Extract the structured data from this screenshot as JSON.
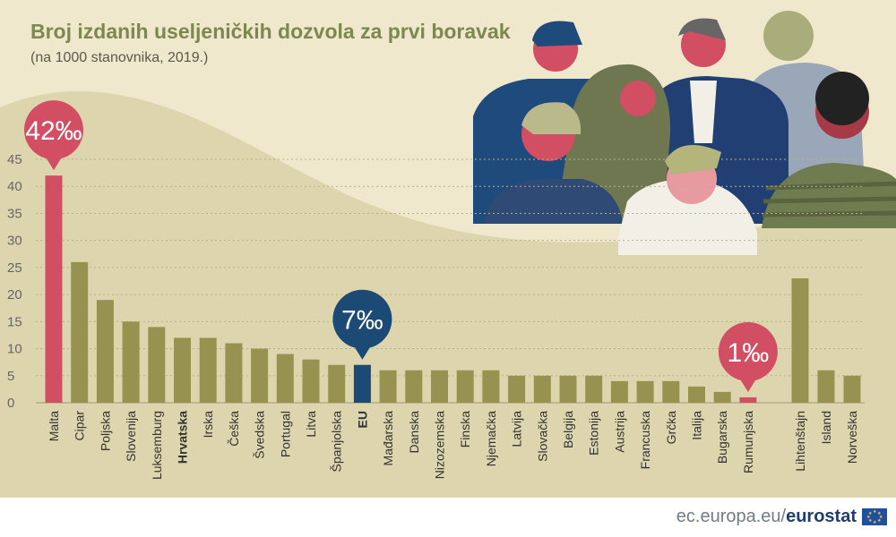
{
  "title": "Broj izdanih useljeničkih dozvola za prvi boravak",
  "subtitle": "(na 1000 stanovnika, 2019.)",
  "footer": {
    "site": "ec.europa.eu/",
    "brand": "eurostat"
  },
  "colors": {
    "olive": "#97924f",
    "malta": "#d24e63",
    "eu": "#1b4a75",
    "title": "#7a8a4e",
    "background": "#efe8cc",
    "wave": "#ddd5ad"
  },
  "chart_data": {
    "type": "bar",
    "categories": [
      "Malta",
      "Cipar",
      "Poljska",
      "Slovenija",
      "Luksemburg",
      "Hrvatska",
      "Irska",
      "Češka",
      "Švedska",
      "Portugal",
      "Litva",
      "Španjolska",
      "EU",
      "Mađarska",
      "Danska",
      "Nizozemska",
      "Finska",
      "Njemačka",
      "Latvija",
      "Slovačka",
      "Belgija",
      "Estonija",
      "Austrija",
      "Francuska",
      "Grčka",
      "Italija",
      "Bugarska",
      "Rumunjska",
      "Lihtenštajn",
      "Island",
      "Norveška"
    ],
    "values": [
      42,
      26,
      19,
      15,
      14,
      12,
      12,
      11,
      10,
      9,
      8,
      7,
      7,
      6,
      6,
      6,
      6,
      6,
      5,
      5,
      5,
      5,
      4,
      4,
      4,
      3,
      2,
      1,
      23,
      6,
      5
    ],
    "bold_categories": [
      "Hrvatska",
      "EU"
    ],
    "highlight": {
      "Malta": "#d24e63",
      "EU": "#1b4a75",
      "Rumunjska": "#d24e63"
    },
    "yticks": [
      0,
      5,
      10,
      15,
      20,
      25,
      30,
      35,
      40,
      45
    ],
    "ylim": [
      0,
      45
    ],
    "grid": true,
    "callouts": [
      {
        "category": "Malta",
        "label": "42‰",
        "color": "#d24e63"
      },
      {
        "category": "EU",
        "label": "7‰",
        "color": "#1b4a75"
      },
      {
        "category": "Rumunjska",
        "label": "1‰",
        "color": "#d24e63"
      }
    ]
  }
}
